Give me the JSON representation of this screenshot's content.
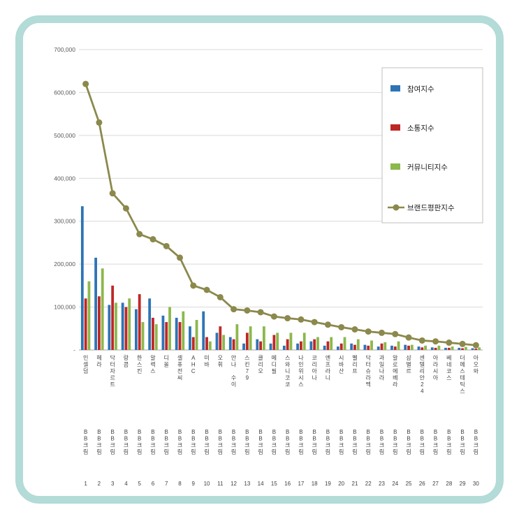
{
  "frame": {
    "border_color": "#b3dbd8",
    "background": "#ffffff"
  },
  "chart_data": {
    "type": "bar",
    "title": "",
    "xlabel": "",
    "ylabel": "",
    "ylim": [
      0,
      700000
    ],
    "ytick_interval": 100000,
    "ytick_labels": [
      "-",
      "100,000",
      "200,000",
      "300,000",
      "400,000",
      "500,000",
      "600,000",
      "700,000"
    ],
    "grid": true,
    "legend_position": "top-right",
    "category_group_label": "BB크림",
    "categories": [
      {
        "rank": 1,
        "name": "인셀덤",
        "group": "BB크림"
      },
      {
        "rank": 2,
        "name": "헤라",
        "group": "BB크림"
      },
      {
        "rank": 3,
        "name": "닥터자르트",
        "group": "BB크림"
      },
      {
        "rank": 4,
        "name": "랑콤",
        "group": "BB크림"
      },
      {
        "rank": 5,
        "name": "한스킨",
        "group": "BB크림"
      },
      {
        "rank": 6,
        "name": "알렉스",
        "group": "BB크림"
      },
      {
        "rank": 7,
        "name": "디올",
        "group": "BB크림"
      },
      {
        "rank": 8,
        "name": "셀퓨전씨",
        "group": "BB크림"
      },
      {
        "rank": 9,
        "name": "AHC",
        "group": "BB크림"
      },
      {
        "rank": 10,
        "name": "미바",
        "group": "BB크림"
      },
      {
        "rank": 11,
        "name": "오휘",
        "group": "BB크림"
      },
      {
        "rank": 12,
        "name": "안나 수이",
        "group": "BB크림"
      },
      {
        "rank": 13,
        "name": "스킨79",
        "group": "BB크림"
      },
      {
        "rank": 14,
        "name": "클리오",
        "group": "BB크림"
      },
      {
        "rank": 15,
        "name": "메디필",
        "group": "BB크림"
      },
      {
        "rank": 16,
        "name": "스와니코코",
        "group": "BB크림"
      },
      {
        "rank": 17,
        "name": "나인위시스",
        "group": "BB크림"
      },
      {
        "rank": 18,
        "name": "코리아나",
        "group": "BB크림"
      },
      {
        "rank": 19,
        "name": "엔프라니",
        "group": "BB크림"
      },
      {
        "rank": 20,
        "name": "시바산",
        "group": "BB크림"
      },
      {
        "rank": 21,
        "name": "벨리프",
        "group": "BB크림"
      },
      {
        "rank": 22,
        "name": "닥터슈라멕",
        "group": "BB크림"
      },
      {
        "rank": 23,
        "name": "과일나라",
        "group": "BB크림"
      },
      {
        "rank": 24,
        "name": "알로에베라",
        "group": "BB크림"
      },
      {
        "rank": 25,
        "name": "샵별르",
        "group": "BB크림"
      },
      {
        "rank": 26,
        "name": "센텔리안24",
        "group": "BB크림"
      },
      {
        "rank": 27,
        "name": "아라시아",
        "group": "BB크림"
      },
      {
        "rank": 28,
        "name": "베네코스",
        "group": "BB크림"
      },
      {
        "rank": 29,
        "name": "더메스테틱스",
        "group": "BB크림"
      },
      {
        "rank": 30,
        "name": "아오와",
        "group": "BB크림"
      }
    ],
    "series": [
      {
        "name": "참여지수",
        "type": "bar",
        "color": "#2e74b5",
        "values": [
          335000,
          215000,
          105000,
          110000,
          95000,
          120000,
          80000,
          75000,
          55000,
          90000,
          40000,
          30000,
          15000,
          25000,
          15000,
          10000,
          15000,
          20000,
          10000,
          8000,
          15000,
          12000,
          8000,
          10000,
          12000,
          8000,
          6000,
          5000,
          5000,
          4000
        ]
      },
      {
        "name": "소통지수",
        "type": "bar",
        "color": "#bf2726",
        "values": [
          120000,
          125000,
          150000,
          100000,
          130000,
          75000,
          65000,
          65000,
          30000,
          30000,
          55000,
          25000,
          40000,
          20000,
          35000,
          25000,
          20000,
          25000,
          20000,
          15000,
          12000,
          10000,
          15000,
          8000,
          10000,
          6000,
          5000,
          5000,
          4000,
          3000
        ]
      },
      {
        "name": "커뮤니티지수",
        "type": "bar",
        "color": "#8cb84c",
        "values": [
          160000,
          190000,
          110000,
          120000,
          65000,
          60000,
          100000,
          90000,
          70000,
          20000,
          35000,
          60000,
          55000,
          55000,
          40000,
          40000,
          40000,
          30000,
          30000,
          30000,
          25000,
          22000,
          18000,
          20000,
          12000,
          10000,
          10000,
          8000,
          7000,
          6000
        ]
      },
      {
        "name": "브랜드평판지수",
        "type": "line",
        "color": "#8b894c",
        "values": [
          620000,
          530000,
          365000,
          330000,
          270000,
          258000,
          242000,
          215000,
          150000,
          140000,
          123000,
          95000,
          92000,
          88000,
          78000,
          74000,
          71000,
          65000,
          59000,
          53000,
          48000,
          43000,
          40000,
          37000,
          29000,
          22000,
          20000,
          17000,
          14000,
          11000
        ]
      }
    ]
  }
}
